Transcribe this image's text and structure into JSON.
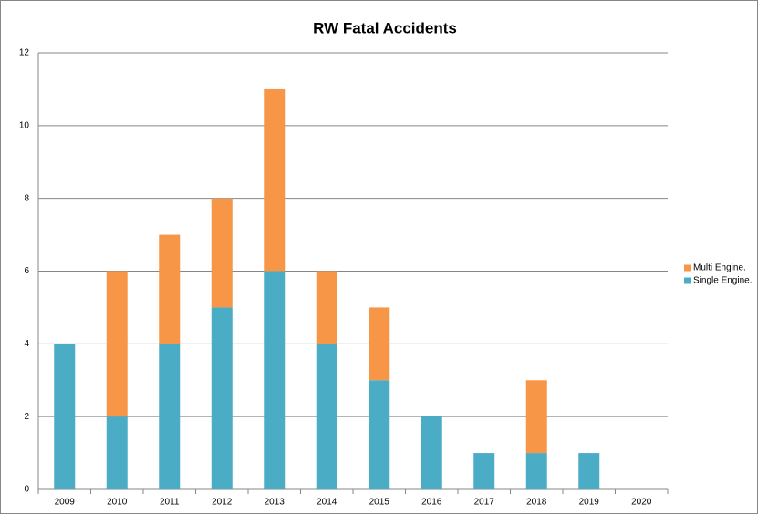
{
  "chart_data": {
    "type": "stacked_bar",
    "title": "RW Fatal Accidents",
    "categories": [
      "2009",
      "2010",
      "2011",
      "2012",
      "2013",
      "2014",
      "2015",
      "2016",
      "2017",
      "2018",
      "2019",
      "2020"
    ],
    "series": [
      {
        "name": "Single Engine.",
        "color": "#4bacc6",
        "values": [
          4,
          2,
          4,
          5,
          6,
          4,
          3,
          2,
          1,
          1,
          1,
          0
        ]
      },
      {
        "name": "Multi Engine.",
        "color": "#f79646",
        "values": [
          0,
          4,
          3,
          3,
          5,
          2,
          2,
          0,
          0,
          2,
          0,
          0
        ]
      }
    ],
    "ylim": [
      0,
      12
    ],
    "yticks": [
      0,
      2,
      4,
      6,
      8,
      10,
      12
    ],
    "grid": true,
    "legend": "right"
  }
}
